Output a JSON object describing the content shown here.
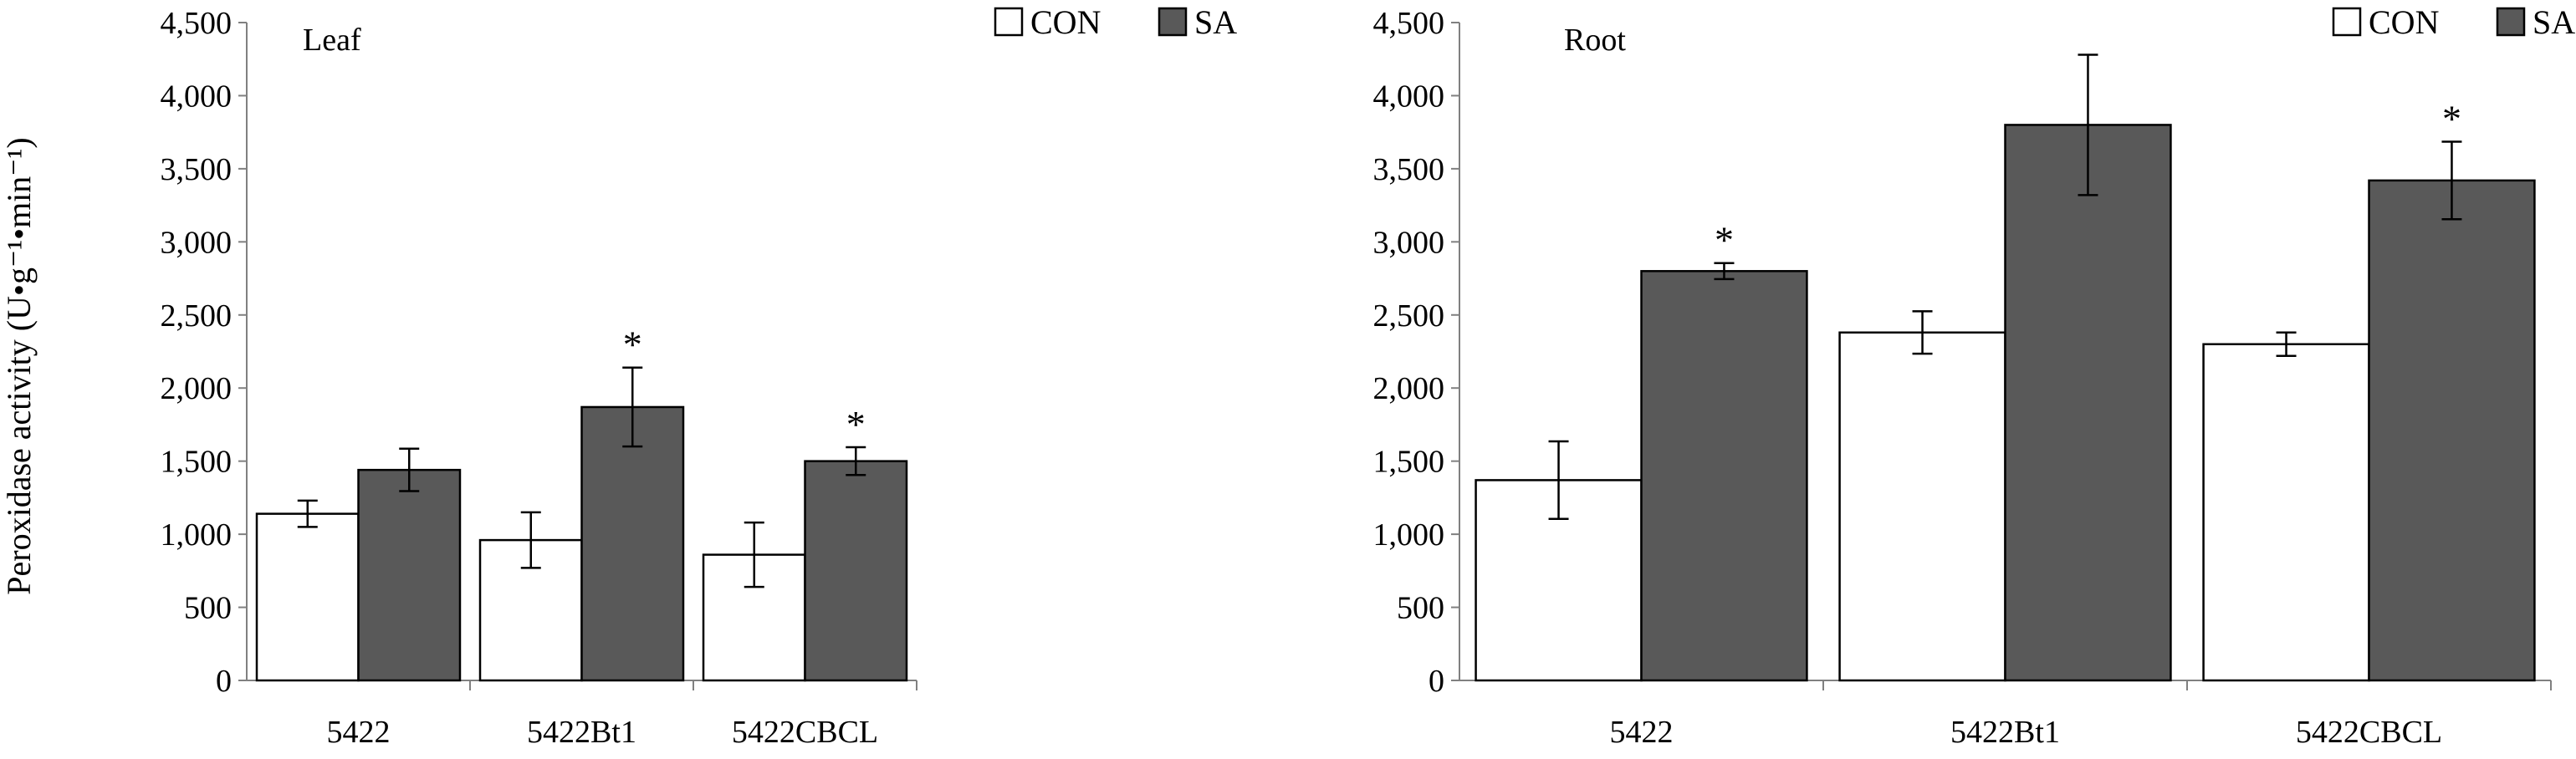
{
  "figure": {
    "y_axis_title": "Peroxidase activity (U•g⁻¹•min⁻¹)"
  },
  "colors": {
    "con": "#ffffff",
    "sa": "#595959",
    "axis": "#808080",
    "outline": "#000000"
  },
  "chart_data": [
    {
      "type": "bar",
      "title": "Leaf",
      "categories": [
        "5422",
        "5422Bt1",
        "5422CBCL"
      ],
      "series": [
        {
          "name": "CON",
          "values": [
            1140,
            960,
            860
          ],
          "errors": [
            90,
            190,
            220
          ],
          "significant": [
            false,
            false,
            false
          ]
        },
        {
          "name": "SA",
          "values": [
            1440,
            1870,
            1500
          ],
          "errors": [
            145,
            270,
            95
          ],
          "significant": [
            false,
            true,
            true
          ]
        }
      ],
      "significance_mark": "*",
      "xlabel": "",
      "ylabel": "Peroxidase activity (U•g⁻¹•min⁻¹)",
      "ylim": [
        0,
        4500
      ],
      "yticks": [
        0,
        500,
        1000,
        1500,
        2000,
        2500,
        3000,
        3500,
        4000,
        4500
      ],
      "ytick_labels": [
        "0",
        "500",
        "1,000",
        "1,500",
        "2,000",
        "2,500",
        "3,000",
        "3,500",
        "4,000",
        "4,500"
      ],
      "legend_position": "top-right",
      "grid": false
    },
    {
      "type": "bar",
      "title": "Root",
      "categories": [
        "5422",
        "5422Bt1",
        "5422CBCL"
      ],
      "series": [
        {
          "name": "CON",
          "values": [
            1370,
            2380,
            2300
          ],
          "errors": [
            265,
            145,
            80
          ],
          "significant": [
            false,
            false,
            false
          ]
        },
        {
          "name": "SA",
          "values": [
            2800,
            3800,
            3420
          ],
          "errors": [
            55,
            480,
            265
          ],
          "significant": [
            true,
            false,
            true
          ]
        }
      ],
      "significance_mark": "*",
      "xlabel": "",
      "ylabel": "",
      "ylim": [
        0,
        4500
      ],
      "yticks": [
        0,
        500,
        1000,
        1500,
        2000,
        2500,
        3000,
        3500,
        4000,
        4500
      ],
      "ytick_labels": [
        "0",
        "500",
        "1,000",
        "1,500",
        "2,000",
        "2,500",
        "3,000",
        "3,500",
        "4,000",
        "4,500"
      ],
      "legend_position": "top-right",
      "grid": false
    }
  ]
}
